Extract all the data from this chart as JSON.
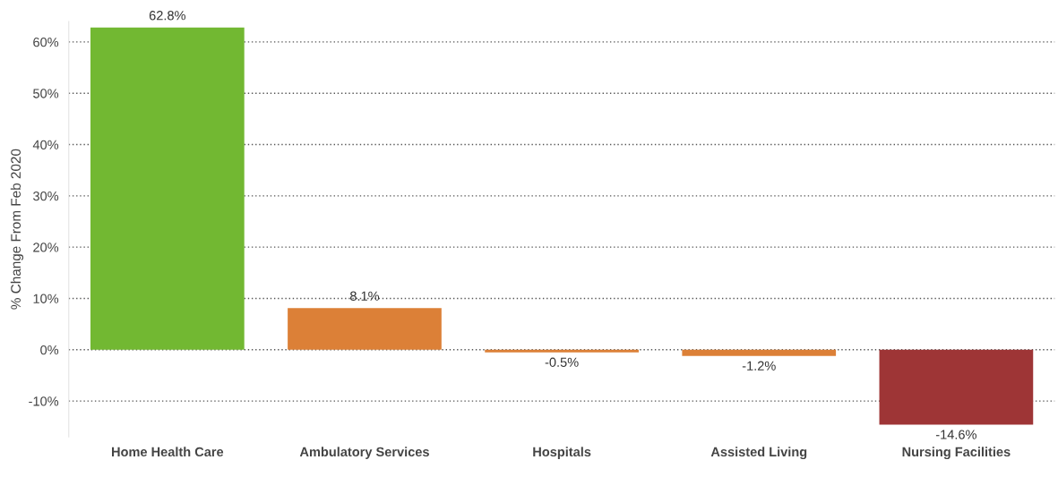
{
  "chart_data": {
    "type": "bar",
    "ylabel": "% Change From Feb 2020",
    "categories": [
      "Home Health Care",
      "Ambulatory Services",
      "Hospitals",
      "Assisted Living",
      "Nursing Facilities"
    ],
    "values": [
      62.8,
      8.1,
      -0.5,
      -1.2,
      -14.6
    ],
    "colors": [
      "#72b832",
      "#dc8037",
      "#dc8037",
      "#dc8037",
      "#9e3536"
    ],
    "value_labels": [
      "62.8%",
      "8.1%",
      "-0.5%",
      "-1.2%",
      "-14.6%"
    ],
    "ylim": [
      -17,
      64
    ],
    "yticks": [
      {
        "value": -10,
        "label": "-10%"
      },
      {
        "value": 0,
        "label": "0%"
      },
      {
        "value": 10,
        "label": "10%"
      },
      {
        "value": 20,
        "label": "20%"
      },
      {
        "value": 30,
        "label": "30%"
      },
      {
        "value": 40,
        "label": "40%"
      },
      {
        "value": 50,
        "label": "50%"
      },
      {
        "value": 60,
        "label": "60%"
      }
    ],
    "grid": "y"
  }
}
